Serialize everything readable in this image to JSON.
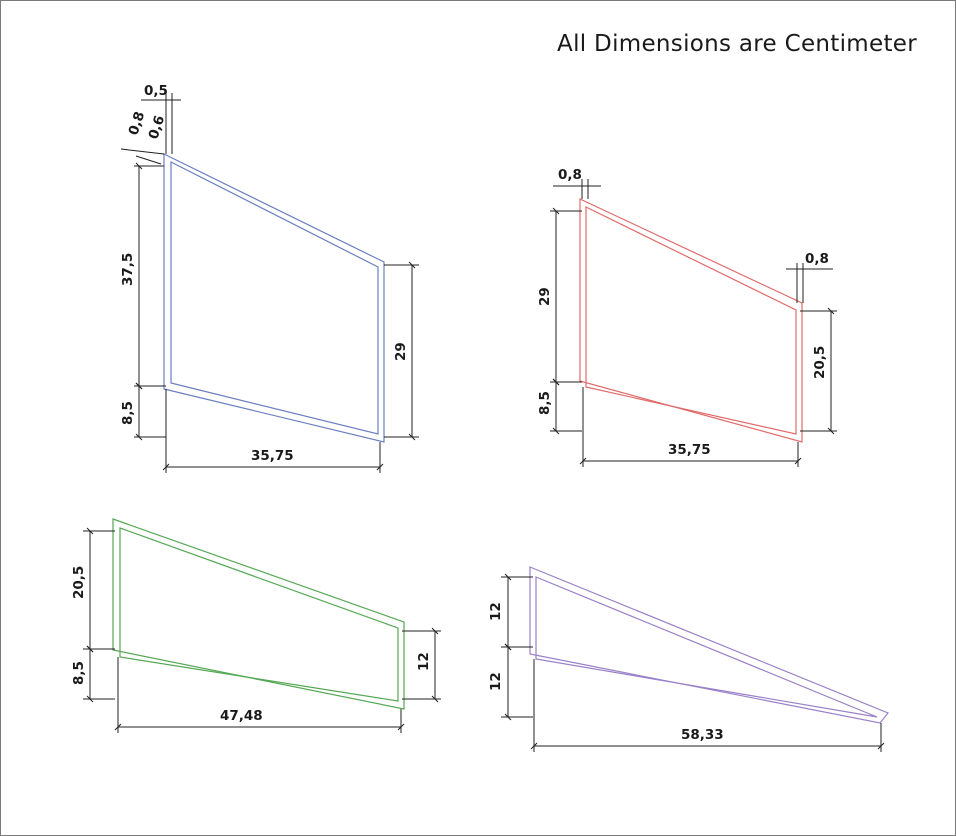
{
  "title": "All Dimensions are Centimeter",
  "colors": {
    "blue": "#6a7fc0",
    "red": "#e06a6a",
    "green": "#55a855",
    "purple": "#9a80c8"
  },
  "panels": [
    {
      "name": "blue-profile",
      "color": "blue",
      "labels": [
        "0,5",
        "0,8",
        "0,6",
        "37,5",
        "8,5",
        "29",
        "35,75"
      ]
    },
    {
      "name": "red-profile",
      "color": "red",
      "labels": [
        "0,8",
        "0,8",
        "29",
        "8,5",
        "20,5",
        "35,75"
      ]
    },
    {
      "name": "green-profile",
      "color": "green",
      "labels": [
        "20,5",
        "8,5",
        "12",
        "47,48"
      ]
    },
    {
      "name": "purple-profile",
      "color": "purple",
      "labels": [
        "12",
        "12",
        "58,33"
      ]
    }
  ]
}
